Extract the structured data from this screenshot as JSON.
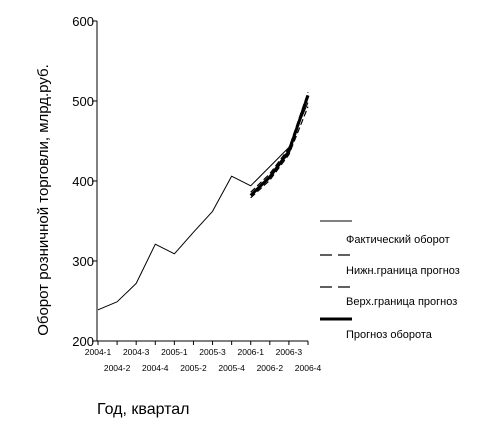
{
  "chart_data": {
    "type": "line",
    "title": "",
    "xlabel": "Год, квартал",
    "ylabel": "Оборот розничной торговли, млрд.руб.",
    "ylim": [
      200,
      600
    ],
    "yticks": [
      200,
      300,
      400,
      500,
      600
    ],
    "categories": [
      "2004-1",
      "2004-2",
      "2004-3",
      "2004-4",
      "2005-1",
      "2005-2",
      "2005-3",
      "2005-4",
      "2006-1",
      "2006-2",
      "2006-3",
      "2006-4"
    ],
    "grid": false,
    "legend_position": "right",
    "series": [
      {
        "name": "Фактический оборот",
        "style": "solid-thin",
        "color": "#000000",
        "values": [
          239,
          249,
          272,
          321,
          309,
          336,
          362,
          406,
          394,
          418,
          442,
          498
        ]
      },
      {
        "name": "Нижн.граница прогноз",
        "style": "dashed",
        "color": "#000000",
        "values": [
          null,
          null,
          null,
          null,
          null,
          null,
          null,
          null,
          379,
          401,
          433,
          493
        ]
      },
      {
        "name": "Верх.граница прогноз",
        "style": "dashed",
        "color": "#000000",
        "values": [
          null,
          null,
          null,
          null,
          null,
          null,
          null,
          null,
          386,
          409,
          441,
          511
        ]
      },
      {
        "name": "Прогноз оборота",
        "style": "solid-thick",
        "color": "#000000",
        "values": [
          null,
          null,
          null,
          null,
          null,
          null,
          null,
          null,
          382,
          405,
          437,
          507
        ]
      }
    ]
  }
}
